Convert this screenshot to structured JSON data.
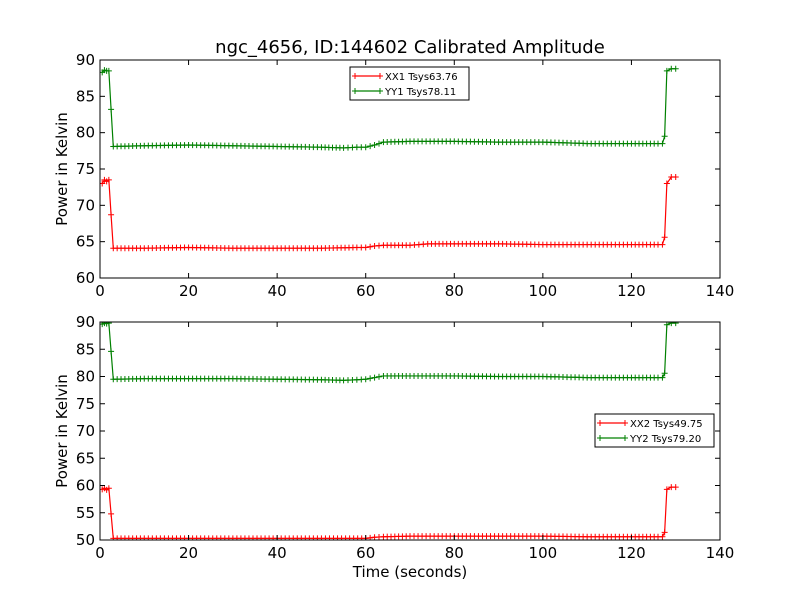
{
  "chart_data": {
    "type": "line",
    "title": "ngc_4656, ID:144602 Calibrated Amplitude",
    "xlabel": "Time (seconds)",
    "panels": [
      {
        "ylabel": "Power in Kelvin",
        "xlim": [
          0,
          140
        ],
        "ylim": [
          60,
          90
        ],
        "xticks": [
          0,
          20,
          40,
          60,
          80,
          100,
          120,
          140
        ],
        "yticks": [
          60,
          65,
          70,
          75,
          80,
          85,
          90
        ],
        "legend_position": "top-center",
        "series": [
          {
            "name": "XX1 Tsys63.76",
            "color": "#ff0000",
            "x": [
              0.5,
              1,
              1.5,
              2,
              2.5,
              3,
              10,
              20,
              30,
              40,
              50,
              58,
              60,
              62,
              64,
              70,
              74,
              80,
              90,
              100,
              110,
              120,
              126,
              127,
              127.5,
              128,
              129,
              130
            ],
            "y": [
              73,
              73.5,
              73.3,
              73.5,
              68.7,
              64.1,
              64.1,
              64.2,
              64.1,
              64.1,
              64.1,
              64.2,
              64.2,
              64.4,
              64.5,
              64.5,
              64.7,
              64.7,
              64.7,
              64.6,
              64.6,
              64.6,
              64.6,
              64.6,
              65.6,
              73,
              73.9,
              73.9
            ]
          },
          {
            "name": "YY1 Tsys78.11",
            "color": "#008000",
            "x": [
              0.5,
              1,
              1.5,
              2,
              2.5,
              3,
              10,
              20,
              30,
              40,
              50,
              55,
              58,
              60,
              62,
              64,
              70,
              80,
              90,
              100,
              110,
              120,
              126,
              127,
              127.5,
              128,
              129,
              130
            ],
            "y": [
              88.3,
              88.6,
              88.5,
              88.5,
              83.2,
              78.1,
              78.2,
              78.3,
              78.2,
              78.1,
              78,
              77.9,
              78,
              78,
              78.3,
              78.7,
              78.8,
              78.8,
              78.7,
              78.7,
              78.5,
              78.5,
              78.5,
              78.5,
              79.5,
              88.5,
              88.8,
              88.8
            ]
          }
        ]
      },
      {
        "ylabel": "Power in Kelvin",
        "xlim": [
          0,
          140
        ],
        "ylim": [
          50,
          90
        ],
        "xticks": [
          0,
          20,
          40,
          60,
          80,
          100,
          120,
          140
        ],
        "yticks": [
          50,
          55,
          60,
          65,
          70,
          75,
          80,
          85,
          90
        ],
        "legend_position": "center-right",
        "series": [
          {
            "name": "XX2 Tsys49.75",
            "color": "#ff0000",
            "x": [
              0.5,
              1,
              1.5,
              2,
              2.5,
              3,
              10,
              20,
              30,
              40,
              50,
              60,
              62,
              64,
              70,
              80,
              90,
              100,
              110,
              120,
              126,
              127,
              127.5,
              128,
              129,
              130
            ],
            "y": [
              59.3,
              59.5,
              59.2,
              59.5,
              54.8,
              50.3,
              50.3,
              50.3,
              50.3,
              50.3,
              50.3,
              50.3,
              50.5,
              50.6,
              50.7,
              50.7,
              50.7,
              50.7,
              50.6,
              50.6,
              50.6,
              50.6,
              51.4,
              59.3,
              59.7,
              59.7
            ]
          },
          {
            "name": "YY2 Tsys79.20",
            "color": "#008000",
            "x": [
              0.5,
              1,
              1.5,
              2,
              2.5,
              3,
              10,
              20,
              30,
              40,
              50,
              55,
              58,
              60,
              62,
              64,
              70,
              80,
              90,
              100,
              110,
              120,
              126,
              127,
              127.5,
              128,
              129,
              130
            ],
            "y": [
              89.6,
              89.8,
              89.7,
              89.8,
              84.6,
              79.5,
              79.6,
              79.6,
              79.6,
              79.5,
              79.4,
              79.3,
              79.4,
              79.5,
              79.8,
              80.1,
              80.1,
              80.1,
              80,
              80,
              79.8,
              79.8,
              79.8,
              79.8,
              80.6,
              89.5,
              89.8,
              89.8
            ]
          }
        ]
      }
    ]
  }
}
